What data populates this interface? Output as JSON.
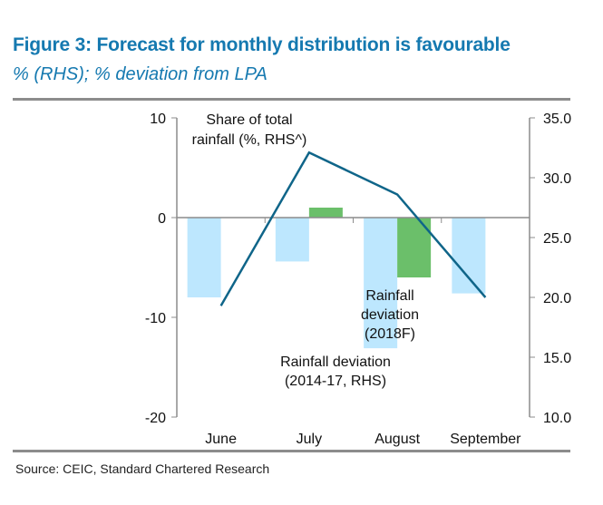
{
  "header": {
    "title": "Figure 3: Forecast for monthly distribution is favourable",
    "subtitle": "% (RHS); % deviation from LPA"
  },
  "footer": {
    "source": "Source: CEIC, Standard Chartered Research"
  },
  "colors": {
    "title": "#1579B0",
    "series_2014_17": "#BDE7FE",
    "series_2018F": "#6BBF6A",
    "series_share": "#0F6589",
    "axis": "#8c8c8c"
  },
  "chart_data": {
    "type": "bar",
    "title": "Figure 3: Forecast for monthly distribution is favourable",
    "subtitle": "% (RHS); % deviation from LPA",
    "xlabel": "",
    "ylabel": "% deviation from LPA",
    "y2label": "%",
    "categories": [
      "June",
      "July",
      "August",
      "September"
    ],
    "ylim": [
      -20,
      10
    ],
    "y_ticks": [
      10,
      0,
      -10,
      -20
    ],
    "y_tick_labels": [
      "10",
      "0",
      "-10",
      "-20"
    ],
    "y2lim": [
      10,
      35
    ],
    "y2_ticks": [
      35,
      30,
      25,
      20,
      15,
      10
    ],
    "y2_tick_labels": [
      "35.0",
      "30.0",
      "25.0",
      "20.0",
      "15.0",
      "10.0"
    ],
    "grid": false,
    "legend": "none (inline annotations)",
    "series": [
      {
        "name": "Rainfall deviation (2014-17, RHS)",
        "kind": "bar",
        "axis": "left",
        "values": [
          -8.0,
          -4.4,
          -13.1,
          -7.6
        ]
      },
      {
        "name": "Rainfall deviation (2018F)",
        "kind": "bar",
        "axis": "left",
        "values": [
          null,
          1.0,
          -6.0,
          null
        ]
      },
      {
        "name": "Share of total rainfall (%, RHS^)",
        "kind": "line",
        "axis": "right",
        "values": [
          19.3,
          32.1,
          28.6,
          20.0
        ]
      }
    ],
    "annotations": [
      {
        "series": 2,
        "lines": [
          "Share of total",
          "rainfall (%, RHS^)"
        ]
      },
      {
        "series": 1,
        "lines": [
          "Rainfall",
          "deviation",
          "(2018F)"
        ]
      },
      {
        "series": 0,
        "lines": [
          "Rainfall deviation",
          "(2014-17, RHS)"
        ]
      }
    ]
  }
}
